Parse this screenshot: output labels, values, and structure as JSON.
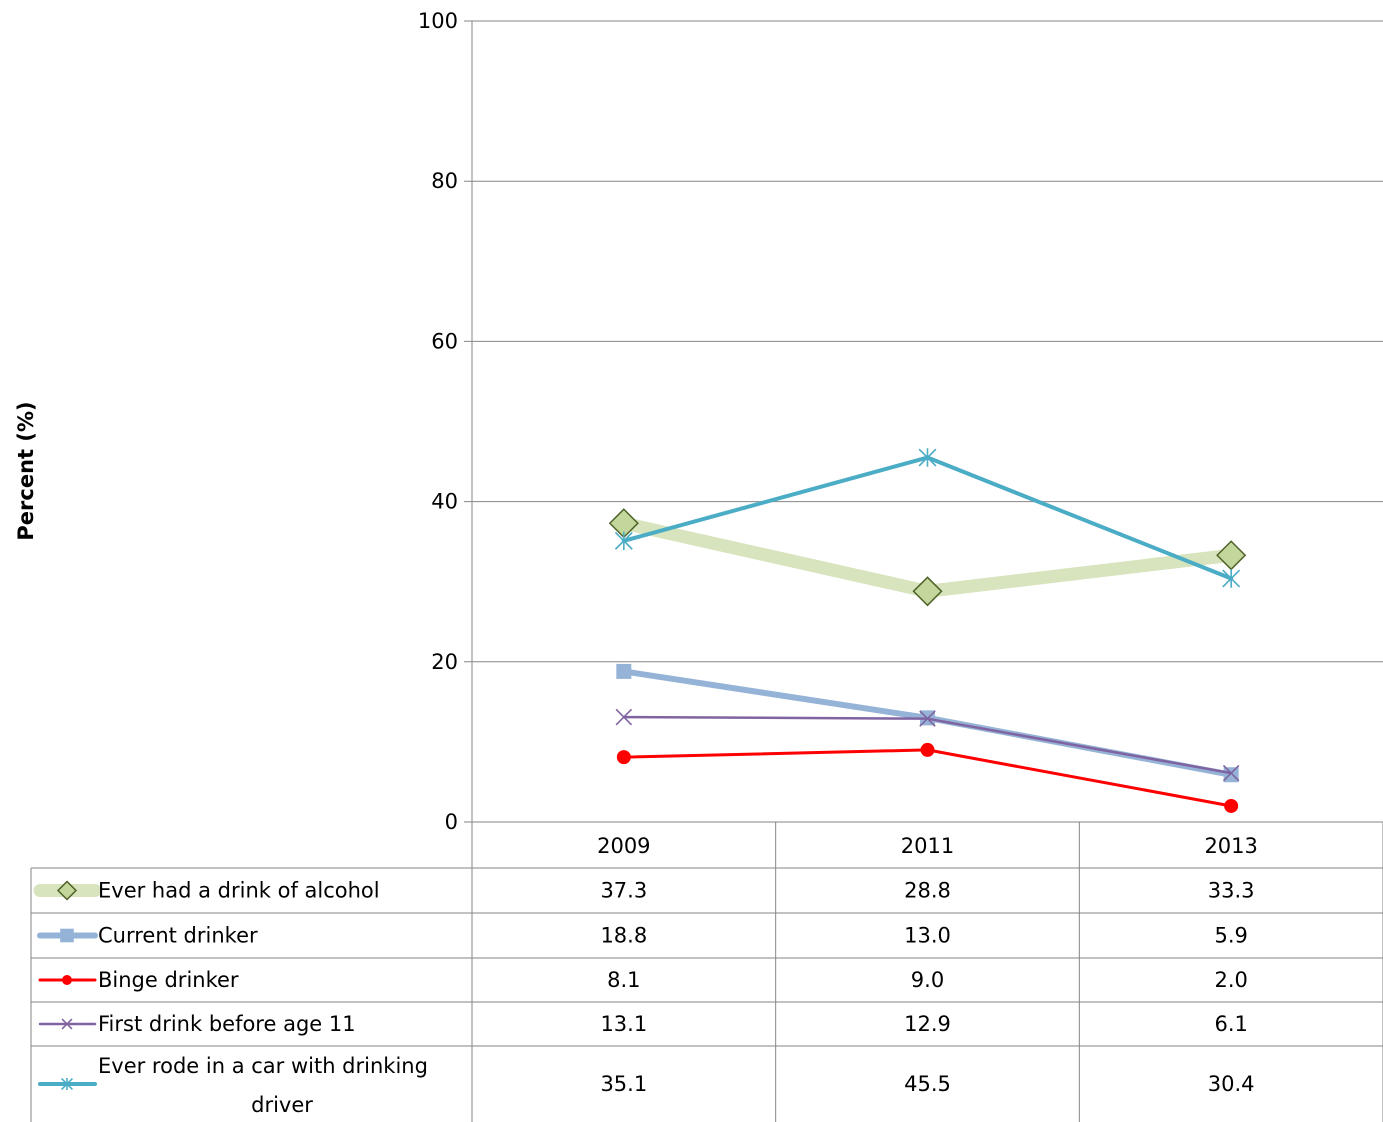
{
  "chart_data": {
    "type": "line",
    "ylabel": "Percent (%)",
    "ylim": [
      0,
      100
    ],
    "yticks": [
      "0",
      "20",
      "40",
      "60",
      "80",
      "100"
    ],
    "grid": true,
    "legend_placement": "data-table-left",
    "categories": [
      "2009",
      "2011",
      "2013"
    ],
    "series": [
      {
        "name": "Ever had a drink of alcohol",
        "values": [
          37.3,
          28.8,
          33.3
        ],
        "labels": [
          "37.3",
          "28.8",
          "33.3"
        ],
        "color": "#D7E4BD",
        "marker_color": "#C3D69B",
        "marker_stroke": "#4F6228",
        "marker": "diamond"
      },
      {
        "name": "Current drinker",
        "values": [
          18.8,
          13.0,
          5.9
        ],
        "labels": [
          "18.8",
          "13.0",
          "5.9"
        ],
        "color": "#95B3D7",
        "marker_color": "#95B3D7",
        "marker_stroke": "#95B3D7",
        "marker": "square"
      },
      {
        "name": "Binge drinker",
        "values": [
          8.1,
          9.0,
          2.0
        ],
        "labels": [
          "8.1",
          "9.0",
          "2.0"
        ],
        "color": "#FF0000",
        "marker_color": "#FF0000",
        "marker_stroke": "#FF0000",
        "marker": "circle"
      },
      {
        "name": "First drink before age 11",
        "values": [
          13.1,
          12.9,
          6.1
        ],
        "labels": [
          "13.1",
          "12.9",
          "6.1"
        ],
        "color": "#8064A2",
        "marker_color": "#8064A2",
        "marker_stroke": "#8064A2",
        "marker": "x"
      },
      {
        "name": "Ever rode in a car with drinking driver",
        "name_lines": [
          "Ever rode in a car with drinking",
          "driver"
        ],
        "values": [
          35.1,
          45.5,
          30.4
        ],
        "labels": [
          "35.1",
          "45.5",
          "30.4"
        ],
        "color": "#4BACC6",
        "marker_color": "#4BACC6",
        "marker_stroke": "#4BACC6",
        "marker": "star"
      }
    ]
  }
}
